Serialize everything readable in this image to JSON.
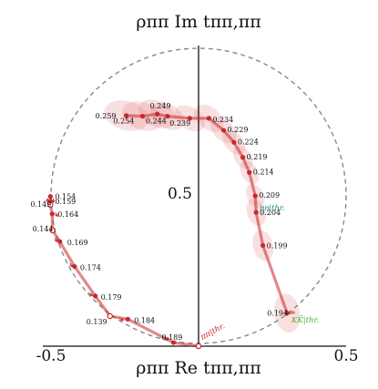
{
  "chart_data": {
    "type": "scatter",
    "title": "",
    "xlabel": "ρππ Re tππ,ππ",
    "ylabel": "ρππ Im tππ,ππ",
    "xlim": [
      -0.5,
      0.5
    ],
    "ylim": [
      0,
      1
    ],
    "x_ticks": [
      "-0.5",
      "0.5"
    ],
    "y_ticks": [
      "0.5"
    ],
    "unitarity_circle": {
      "center": [
        0,
        0.5
      ],
      "radius": 0.5,
      "style": "dashed",
      "color": "#888888"
    },
    "curve_color": "#c62828",
    "band_color": "#e57373",
    "series": [
      {
        "points": [
          {
            "label": "0.194",
            "x": 0.3,
            "y": 0.11
          },
          {
            "label": "0.199",
            "x": 0.218,
            "y": 0.335
          },
          {
            "label": "0.204",
            "x": 0.195,
            "y": 0.445
          },
          {
            "label": "0.209",
            "x": 0.192,
            "y": 0.5
          },
          {
            "label": "0.214",
            "x": 0.172,
            "y": 0.578
          },
          {
            "label": "0.219",
            "x": 0.15,
            "y": 0.628
          },
          {
            "label": "0.224",
            "x": 0.12,
            "y": 0.678
          },
          {
            "label": "0.229",
            "x": 0.085,
            "y": 0.718
          },
          {
            "label": "0.234",
            "x": 0.035,
            "y": 0.758
          },
          {
            "label": "0.239",
            "x": -0.03,
            "y": 0.758
          },
          {
            "label": "0.244",
            "x": -0.105,
            "y": 0.765
          },
          {
            "label": "0.249",
            "x": -0.14,
            "y": 0.772
          },
          {
            "label": "0.254",
            "x": -0.19,
            "y": 0.765
          },
          {
            "label": "0.259",
            "x": -0.245,
            "y": 0.767
          }
        ]
      },
      {
        "points": [
          {
            "label": "0.154",
            "x": -0.502,
            "y": 0.498
          },
          {
            "label": "0.159",
            "x": -0.502,
            "y": 0.482
          },
          {
            "label": "0.164",
            "x": -0.496,
            "y": 0.44
          },
          {
            "label": "0.169",
            "x": -0.47,
            "y": 0.348
          },
          {
            "label": "0.174",
            "x": -0.42,
            "y": 0.265
          },
          {
            "label": "0.179",
            "x": -0.35,
            "y": 0.167
          },
          {
            "label": "0.184",
            "x": -0.24,
            "y": 0.09
          },
          {
            "label": "0.189",
            "x": -0.085,
            "y": 0.012
          }
        ]
      }
    ],
    "open_points": [
      {
        "label": "0.149",
        "x": -0.502,
        "y": 0.47
      },
      {
        "label": "0.144",
        "x": -0.495,
        "y": 0.385
      },
      {
        "label": "0.139",
        "x": -0.3,
        "y": 0.1
      },
      {
        "label": "",
        "x": 0.0,
        "y": 0.0
      }
    ],
    "threshold_labels": [
      {
        "text": "ηη|thr.",
        "color": "#1f8a8a"
      },
      {
        "text": "KK̄|thr.",
        "color": "#4caf28"
      },
      {
        "text": "ππ|thr.",
        "color": "#c62828"
      }
    ]
  }
}
